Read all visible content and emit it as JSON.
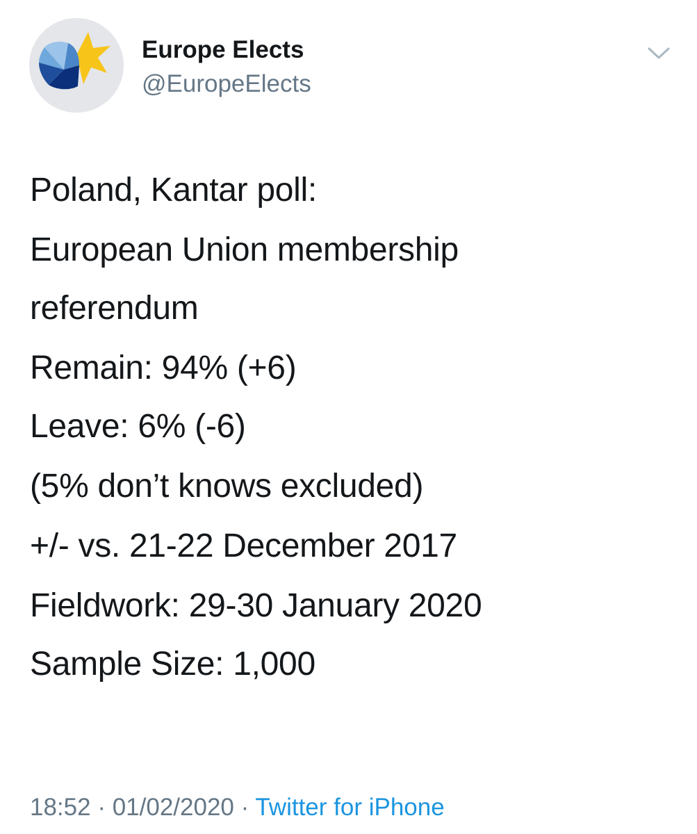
{
  "author": {
    "name": "Europe Elects",
    "handle": "@EuropeElects",
    "avatar_icon": "europe-elects-logo"
  },
  "menu": {
    "icon": "chevron-down-icon"
  },
  "tweet": {
    "lines": [
      "Poland, Kantar poll:",
      "European Union membership\nreferendum",
      "Remain: 94% (+6)\nLeave: 6% (-6)",
      "(5% don’t knows excluded)",
      "+/- vs. 21-22 December 2017",
      "Fieldwork: 29-30 January 2020\nSample Size: 1,000"
    ]
  },
  "meta": {
    "time": "18:52",
    "separator": " · ",
    "date": "01/02/2020",
    "source": "Twitter for iPhone"
  },
  "colors": {
    "text": "#14171a",
    "secondary": "#657786",
    "link": "#1b95e0",
    "logo_yellow": "#f7c41a",
    "logo_blue_dark": "#0b2f7a",
    "logo_blue_light": "#6fa8dc"
  }
}
